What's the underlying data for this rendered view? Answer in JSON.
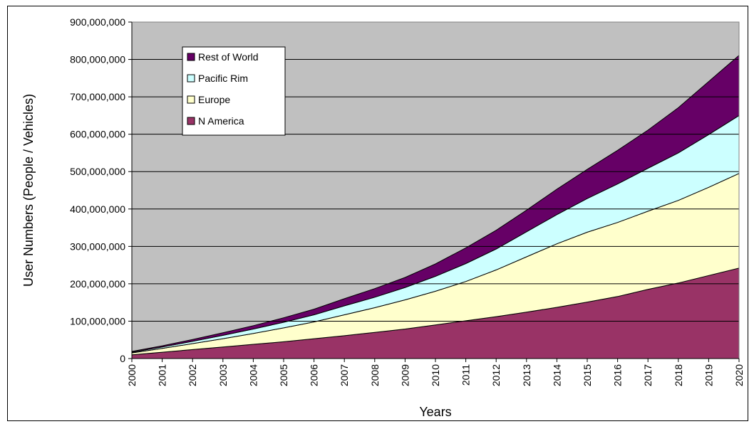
{
  "chart_data": {
    "type": "area",
    "stacked": true,
    "xlabel": "Years",
    "ylabel": "User Numbers (People / Vehicles)",
    "ylim": [
      0,
      900000000
    ],
    "yticks": [
      0,
      100000000,
      200000000,
      300000000,
      400000000,
      500000000,
      600000000,
      700000000,
      800000000,
      900000000
    ],
    "ytick_labels": [
      "0",
      "100,000,000",
      "200,000,000",
      "300,000,000",
      "400,000,000",
      "500,000,000",
      "600,000,000",
      "700,000,000",
      "800,000,000",
      "900,000,000"
    ],
    "grid": "horizontal",
    "plot_background": "#c0c0c0",
    "legend_position": "top-left",
    "categories": [
      "2000",
      "2001",
      "2002",
      "2003",
      "2004",
      "2005",
      "2006",
      "2007",
      "2008",
      "2009",
      "2010",
      "2011",
      "2012",
      "2013",
      "2014",
      "2015",
      "2016",
      "2017",
      "2018",
      "2019",
      "2020"
    ],
    "series": [
      {
        "name": "N America",
        "color": "#993366",
        "values": [
          10000000,
          17000000,
          24000000,
          31000000,
          38000000,
          45000000,
          53000000,
          61000000,
          70000000,
          79000000,
          90000000,
          101000000,
          112000000,
          124000000,
          137000000,
          151000000,
          166000000,
          185000000,
          202000000,
          222000000,
          242000000
        ]
      },
      {
        "name": "Europe",
        "color": "#ffffcc",
        "values": [
          5000000,
          10000000,
          16000000,
          22000000,
          29000000,
          37000000,
          45000000,
          56000000,
          66000000,
          78000000,
          90000000,
          105000000,
          125000000,
          148000000,
          170000000,
          187000000,
          198000000,
          209000000,
          221000000,
          236000000,
          253000000
        ]
      },
      {
        "name": "Pacific Rim",
        "color": "#ccffff",
        "values": [
          2000000,
          4000000,
          6000000,
          9000000,
          12000000,
          15000000,
          19000000,
          24000000,
          28000000,
          33000000,
          40000000,
          48000000,
          56000000,
          67000000,
          78000000,
          90000000,
          103000000,
          115000000,
          127000000,
          141000000,
          155000000
        ]
      },
      {
        "name": "Rest of World",
        "color": "#660066",
        "values": [
          2000000,
          3000000,
          5000000,
          7000000,
          9000000,
          12000000,
          15000000,
          19000000,
          23000000,
          27000000,
          33000000,
          42000000,
          50000000,
          58000000,
          68000000,
          78000000,
          90000000,
          102000000,
          121000000,
          142000000,
          161000000
        ]
      }
    ],
    "legend_order": [
      "Rest of World",
      "Pacific Rim",
      "Europe",
      "N America"
    ]
  }
}
